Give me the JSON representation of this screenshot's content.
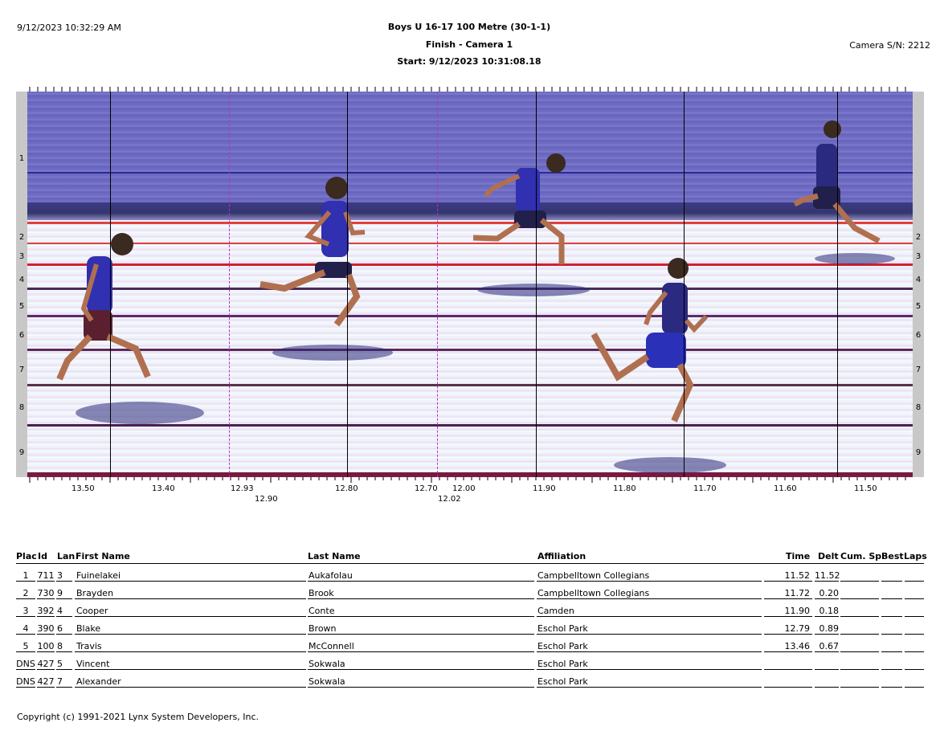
{
  "header": {
    "datetime": "9/12/2023 10:32:29 AM",
    "title": "Boys U 16-17 100 Metre (30-1-1)",
    "subtitle": "Finish - Camera 1",
    "start": "Start: 9/12/2023 10:31:08.18",
    "camera": "Camera S/N: 2212"
  },
  "lanes": [
    "1",
    "2",
    "3",
    "4",
    "5",
    "6",
    "7",
    "8",
    "9"
  ],
  "time_ticks": {
    "top": [
      "13.50",
      "13.40",
      "12.93",
      "12.80",
      "12.70",
      "12.00",
      "11.90",
      "11.80",
      "11.70",
      "11.60",
      "11.50"
    ],
    "bottom": [
      "12.90",
      "12.02"
    ]
  },
  "results": {
    "headers": [
      "Plac",
      "Id",
      "Lan",
      "First Name",
      "Last Name",
      "Affiliation",
      "Time",
      "Delt",
      "Cum. Spl",
      "Best",
      "Laps"
    ],
    "rows": [
      {
        "place": "1",
        "id": "711",
        "lane": "3",
        "first": "Fuinelakei",
        "last": "Aukafolau",
        "affiliation": "Campbelltown Collegians",
        "time": "11.52",
        "delta": "11.52"
      },
      {
        "place": "2",
        "id": "730",
        "lane": "9",
        "first": "Brayden",
        "last": "Brook",
        "affiliation": "Campbelltown Collegians",
        "time": "11.72",
        "delta": "0.20"
      },
      {
        "place": "3",
        "id": "392",
        "lane": "4",
        "first": "Cooper",
        "last": "Conte",
        "affiliation": "Camden",
        "time": "11.90",
        "delta": "0.18"
      },
      {
        "place": "4",
        "id": "390",
        "lane": "6",
        "first": "Blake",
        "last": "Brown",
        "affiliation": "Eschol Park",
        "time": "12.79",
        "delta": "0.89"
      },
      {
        "place": "5",
        "id": "100",
        "lane": "8",
        "first": "Travis",
        "last": "McConnell",
        "affiliation": "Eschol Park",
        "time": "13.46",
        "delta": "0.67"
      },
      {
        "place": "DNS",
        "id": "427",
        "lane": "5",
        "first": "Vincent",
        "last": "Sokwala",
        "affiliation": "Eschol Park",
        "time": "",
        "delta": ""
      },
      {
        "place": "DNS",
        "id": "427",
        "lane": "7",
        "first": "Alexander",
        "last": "Sokwala",
        "affiliation": "Eschol Park",
        "time": "",
        "delta": ""
      }
    ]
  },
  "footer": "Copyright (c) 1991-2021 Lynx System Developers, Inc."
}
